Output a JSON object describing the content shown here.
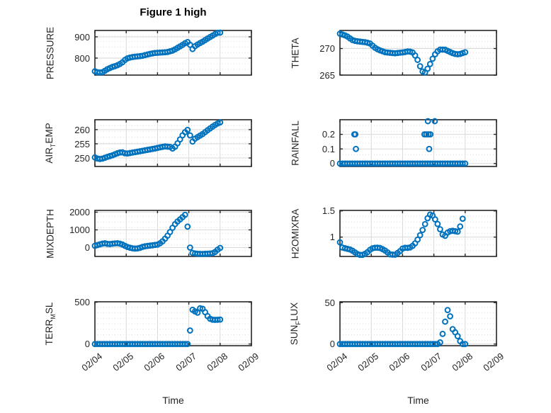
{
  "title": "Figure 1 high",
  "xlabel": "Time",
  "colors": {
    "marker": "#0072BD",
    "axis": "#262626",
    "grid_major": "#d9d9d9",
    "grid_minor": "#dcdcdc",
    "title": "#000000"
  },
  "x_axis": {
    "lim": [
      0,
      5
    ],
    "ticks": [
      0,
      1,
      2,
      3,
      4,
      5
    ],
    "tick_labels": [
      "02/04",
      "02/05",
      "02/06",
      "02/07",
      "02/08",
      "02/09"
    ],
    "label": "Time"
  },
  "marker_step_days": 0.08,
  "chart_data": [
    {
      "name": "pressure",
      "type": "scatter",
      "ylabel": {
        "pre": "PRESSURE",
        "sub": "",
        "post": ""
      },
      "ylim": [
        720,
        930
      ],
      "yticks": [
        {
          "v": 800,
          "t": "800"
        },
        {
          "v": 900,
          "t": "900"
        }
      ],
      "points": [
        [
          0,
          738
        ],
        [
          0.12,
          731
        ],
        [
          0.25,
          734
        ],
        [
          0.4,
          748
        ],
        [
          0.55,
          758
        ],
        [
          0.7,
          765
        ],
        [
          0.85,
          776
        ],
        [
          1.0,
          797
        ],
        [
          1.15,
          804
        ],
        [
          1.3,
          807
        ],
        [
          1.5,
          810
        ],
        [
          1.7,
          818
        ],
        [
          1.9,
          824
        ],
        [
          2.1,
          826
        ],
        [
          2.3,
          828
        ],
        [
          2.5,
          836
        ],
        [
          2.65,
          849
        ],
        [
          2.8,
          862
        ],
        [
          2.92,
          874
        ],
        [
          2.98,
          876
        ],
        [
          3.06,
          858
        ],
        [
          3.1,
          839
        ],
        [
          3.18,
          854
        ],
        [
          3.3,
          866
        ],
        [
          3.45,
          878
        ],
        [
          3.6,
          892
        ],
        [
          3.75,
          905
        ],
        [
          3.88,
          917
        ],
        [
          3.97,
          922
        ],
        [
          4.05,
          916
        ]
      ],
      "scatter": []
    },
    {
      "name": "theta",
      "type": "scatter",
      "ylabel": {
        "pre": "THETA",
        "sub": "",
        "post": ""
      },
      "ylim": [
        265,
        273.4
      ],
      "yticks": [
        {
          "v": 265,
          "t": "265"
        },
        {
          "v": 270,
          "t": "270"
        }
      ],
      "points": [
        [
          0,
          272.8
        ],
        [
          0.1,
          272.6
        ],
        [
          0.2,
          272.4
        ],
        [
          0.3,
          272.0
        ],
        [
          0.4,
          271.6
        ],
        [
          0.5,
          271.4
        ],
        [
          0.65,
          271.3
        ],
        [
          0.8,
          271.2
        ],
        [
          0.95,
          271.0
        ],
        [
          1.05,
          270.5
        ],
        [
          1.15,
          270.0
        ],
        [
          1.3,
          269.6
        ],
        [
          1.45,
          269.3
        ],
        [
          1.6,
          269.2
        ],
        [
          1.75,
          269.1
        ],
        [
          1.9,
          269.2
        ],
        [
          2.05,
          269.3
        ],
        [
          2.2,
          269.5
        ],
        [
          2.35,
          269.2
        ],
        [
          2.45,
          268.2
        ],
        [
          2.52,
          267.4
        ],
        [
          2.58,
          266.3
        ],
        [
          2.63,
          265.7
        ],
        [
          2.72,
          265.5
        ],
        [
          2.8,
          266.2
        ],
        [
          2.9,
          267.3
        ],
        [
          3.0,
          268.6
        ],
        [
          3.1,
          269.4
        ],
        [
          3.2,
          269.8
        ],
        [
          3.35,
          269.8
        ],
        [
          3.5,
          269.4
        ],
        [
          3.65,
          269.0
        ],
        [
          3.8,
          268.9
        ],
        [
          3.95,
          269.2
        ],
        [
          4.05,
          269.4
        ]
      ],
      "scatter": []
    },
    {
      "name": "air-temp",
      "type": "scatter",
      "ylabel": {
        "pre": "AIR",
        "sub": "T",
        "post": "EMP"
      },
      "ylim": [
        247,
        263.5
      ],
      "yticks": [
        {
          "v": 250,
          "t": "250"
        },
        {
          "v": 255,
          "t": "255"
        },
        {
          "v": 260,
          "t": "260"
        }
      ],
      "points": [
        [
          0,
          250.2
        ],
        [
          0.12,
          249.6
        ],
        [
          0.25,
          249.8
        ],
        [
          0.4,
          250.4
        ],
        [
          0.55,
          250.9
        ],
        [
          0.7,
          251.6
        ],
        [
          0.85,
          252.1
        ],
        [
          1.0,
          251.5
        ],
        [
          1.15,
          251.8
        ],
        [
          1.3,
          252.1
        ],
        [
          1.5,
          252.5
        ],
        [
          1.7,
          252.9
        ],
        [
          1.9,
          253.3
        ],
        [
          2.1,
          253.8
        ],
        [
          2.25,
          254.1
        ],
        [
          2.4,
          253.9
        ],
        [
          2.5,
          253.2
        ],
        [
          2.6,
          254.5
        ],
        [
          2.7,
          256.2
        ],
        [
          2.8,
          258.0
        ],
        [
          2.9,
          259.4
        ],
        [
          2.97,
          260.0
        ],
        [
          3.06,
          257.4
        ],
        [
          3.12,
          255.8
        ],
        [
          3.2,
          256.8
        ],
        [
          3.3,
          257.5
        ],
        [
          3.45,
          258.5
        ],
        [
          3.6,
          259.8
        ],
        [
          3.75,
          261.0
        ],
        [
          3.9,
          262.1
        ],
        [
          4.05,
          262.8
        ]
      ],
      "scatter": []
    },
    {
      "name": "rainfall",
      "type": "scatter",
      "ylabel": {
        "pre": "RAINFALL",
        "sub": "",
        "post": ""
      },
      "ylim": [
        -0.02,
        0.3
      ],
      "yticks": [
        {
          "v": 0,
          "t": "0"
        },
        {
          "v": 0.1,
          "t": "0.1"
        },
        {
          "v": 0.2,
          "t": "0.2"
        }
      ],
      "points": [
        [
          0,
          0
        ],
        [
          4.05,
          0
        ]
      ],
      "scatter": [
        [
          0.46,
          0.2
        ],
        [
          0.49,
          0.2
        ],
        [
          0.51,
          0.1
        ],
        [
          2.7,
          0.2
        ],
        [
          2.76,
          0.2
        ],
        [
          2.81,
          0.29
        ],
        [
          2.83,
          0.2
        ],
        [
          2.85,
          0.1
        ],
        [
          2.89,
          0.2
        ],
        [
          3.03,
          0.29
        ]
      ]
    },
    {
      "name": "mixdepth",
      "type": "scatter",
      "ylabel": {
        "pre": "MIXDEPTH",
        "sub": "",
        "post": ""
      },
      "ylim": [
        -500,
        2100
      ],
      "yticks": [
        {
          "v": 0,
          "t": "0"
        },
        {
          "v": 1000,
          "t": "1000"
        },
        {
          "v": 2000,
          "t": "2000"
        }
      ],
      "points": [
        [
          0,
          100
        ],
        [
          0.15,
          180
        ],
        [
          0.3,
          250
        ],
        [
          0.45,
          190
        ],
        [
          0.6,
          230
        ],
        [
          0.75,
          250
        ],
        [
          0.9,
          160
        ],
        [
          1.0,
          60
        ],
        [
          1.1,
          0
        ],
        [
          1.25,
          -60
        ],
        [
          1.4,
          -40
        ],
        [
          1.55,
          60
        ],
        [
          1.7,
          100
        ],
        [
          1.85,
          130
        ],
        [
          2.0,
          170
        ],
        [
          2.1,
          260
        ],
        [
          2.2,
          420
        ],
        [
          2.3,
          620
        ],
        [
          2.4,
          880
        ],
        [
          2.5,
          1180
        ],
        [
          2.6,
          1420
        ],
        [
          2.7,
          1560
        ],
        [
          2.8,
          1720
        ],
        [
          2.88,
          1850
        ],
        [
          2.94,
          1450
        ],
        [
          2.97,
          1050
        ],
        [
          3.01,
          240
        ],
        [
          3.05,
          -80
        ],
        [
          3.12,
          -300
        ],
        [
          3.25,
          -350
        ],
        [
          3.45,
          -360
        ],
        [
          3.65,
          -340
        ],
        [
          3.8,
          -310
        ],
        [
          3.92,
          -120
        ],
        [
          4.0,
          -20
        ],
        [
          4.05,
          40
        ]
      ],
      "scatter": []
    },
    {
      "name": "h2omixra",
      "type": "scatter",
      "ylabel": {
        "pre": "H2OMIXRA",
        "sub": "",
        "post": ""
      },
      "ylim": [
        0.63,
        1.51
      ],
      "yticks": [
        {
          "v": 1,
          "t": "1"
        },
        {
          "v": 1.5,
          "t": "1.5"
        }
      ],
      "points": [
        [
          0,
          0.9
        ],
        [
          0.08,
          0.8
        ],
        [
          0.2,
          0.78
        ],
        [
          0.35,
          0.76
        ],
        [
          0.5,
          0.7
        ],
        [
          0.6,
          0.66
        ],
        [
          0.75,
          0.66
        ],
        [
          0.9,
          0.72
        ],
        [
          1.0,
          0.78
        ],
        [
          1.15,
          0.8
        ],
        [
          1.3,
          0.79
        ],
        [
          1.45,
          0.74
        ],
        [
          1.6,
          0.67
        ],
        [
          1.75,
          0.66
        ],
        [
          1.9,
          0.72
        ],
        [
          2.0,
          0.78
        ],
        [
          2.1,
          0.8
        ],
        [
          2.2,
          0.79
        ],
        [
          2.3,
          0.82
        ],
        [
          2.4,
          0.88
        ],
        [
          2.5,
          0.97
        ],
        [
          2.6,
          1.08
        ],
        [
          2.7,
          1.22
        ],
        [
          2.8,
          1.36
        ],
        [
          2.88,
          1.43
        ],
        [
          2.95,
          1.42
        ],
        [
          3.05,
          1.33
        ],
        [
          3.12,
          1.25
        ],
        [
          3.2,
          1.15
        ],
        [
          3.28,
          1.05
        ],
        [
          3.33,
          0.99
        ],
        [
          3.4,
          1.07
        ],
        [
          3.5,
          1.11
        ],
        [
          3.6,
          1.12
        ],
        [
          3.7,
          1.11
        ],
        [
          3.8,
          1.1
        ],
        [
          3.87,
          1.28
        ],
        [
          3.94,
          1.38
        ]
      ],
      "scatter": []
    },
    {
      "name": "terr-msl",
      "type": "scatter",
      "ylabel": {
        "pre": "TERR",
        "sub": "M",
        "post": "SL"
      },
      "ylim": [
        -20,
        505
      ],
      "yticks": [
        {
          "v": 0,
          "t": "0"
        },
        {
          "v": 500,
          "t": "500"
        }
      ],
      "points": [
        [
          0,
          0
        ],
        [
          3.0,
          0
        ],
        [
          3.03,
          150
        ],
        [
          3.06,
          185
        ],
        [
          3.1,
          330
        ],
        [
          3.13,
          450
        ],
        [
          3.16,
          480
        ],
        [
          3.2,
          390
        ],
        [
          3.24,
          350
        ],
        [
          3.28,
          375
        ],
        [
          3.33,
          425
        ],
        [
          3.4,
          430
        ],
        [
          3.47,
          415
        ],
        [
          3.55,
          360
        ],
        [
          3.63,
          318
        ],
        [
          3.7,
          295
        ],
        [
          3.8,
          288
        ],
        [
          3.9,
          290
        ],
        [
          4.0,
          292
        ],
        [
          4.05,
          290
        ]
      ],
      "scatter": []
    },
    {
      "name": "sun-flux",
      "type": "scatter",
      "ylabel": {
        "pre": "SUN",
        "sub": "F",
        "post": "LUX"
      },
      "ylim": [
        -2,
        51
      ],
      "yticks": [
        {
          "v": 0,
          "t": "0"
        },
        {
          "v": 50,
          "t": "50"
        }
      ],
      "points": [
        [
          0,
          0
        ],
        [
          3.18,
          0
        ],
        [
          3.25,
          7
        ],
        [
          3.29,
          14
        ],
        [
          3.32,
          20
        ],
        [
          3.36,
          27
        ],
        [
          3.4,
          34
        ],
        [
          3.44,
          41
        ],
        [
          3.47,
          44
        ],
        [
          3.51,
          38
        ],
        [
          3.55,
          20
        ],
        [
          3.6,
          18
        ],
        [
          3.65,
          16
        ],
        [
          3.7,
          13
        ],
        [
          3.74,
          11
        ],
        [
          3.78,
          8
        ],
        [
          3.82,
          5
        ],
        [
          3.86,
          2
        ],
        [
          3.9,
          0
        ],
        [
          4.05,
          0
        ]
      ],
      "scatter": []
    }
  ]
}
